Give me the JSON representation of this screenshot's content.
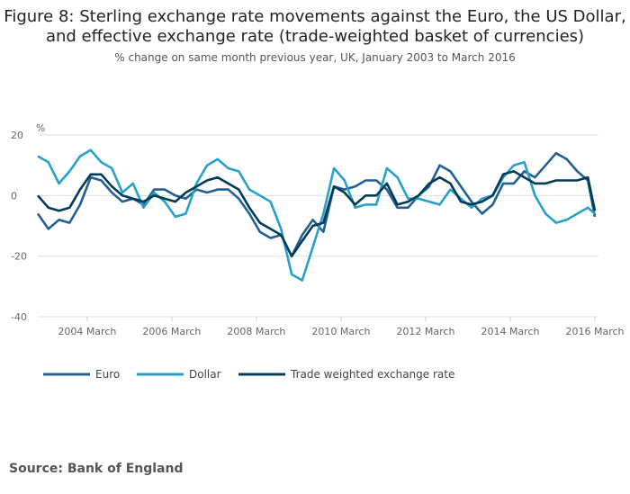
{
  "title_line1": "Figure 8: Sterling exchange rate movements against the Euro, the US Dollar,",
  "title_line2": "and effective exchange rate (trade-weighted basket of currencies)",
  "subtitle": "% change on same month previous year, UK, January 2003 to March 2016",
  "source": "Source: Bank of England",
  "chart_data": {
    "type": "line",
    "ylabel": "%",
    "ylim": [
      -40,
      20
    ],
    "yticks": [
      20,
      0,
      -20,
      -40
    ],
    "xlim": [
      "2003-01",
      "2016-03"
    ],
    "xticks": [
      {
        "date": "2004-03",
        "label": "2004 March"
      },
      {
        "date": "2006-03",
        "label": "2006 March"
      },
      {
        "date": "2008-03",
        "label": "2008 March"
      },
      {
        "date": "2010-03",
        "label": "2010 March"
      },
      {
        "date": "2012-03",
        "label": "2012 March"
      },
      {
        "date": "2014-03",
        "label": "2014 March"
      },
      {
        "date": "2016-03",
        "label": "2016 March"
      }
    ],
    "grid": true,
    "legend": "bottom",
    "x": [
      "2003-01",
      "2003-04",
      "2003-07",
      "2003-10",
      "2004-01",
      "2004-04",
      "2004-07",
      "2004-10",
      "2005-01",
      "2005-04",
      "2005-07",
      "2005-10",
      "2006-01",
      "2006-04",
      "2006-07",
      "2006-10",
      "2007-01",
      "2007-04",
      "2007-07",
      "2007-10",
      "2008-01",
      "2008-04",
      "2008-07",
      "2008-10",
      "2009-01",
      "2009-04",
      "2009-07",
      "2009-10",
      "2010-01",
      "2010-04",
      "2010-07",
      "2010-10",
      "2011-01",
      "2011-04",
      "2011-07",
      "2011-10",
      "2012-01",
      "2012-04",
      "2012-07",
      "2012-10",
      "2013-01",
      "2013-04",
      "2013-07",
      "2013-10",
      "2014-01",
      "2014-04",
      "2014-07",
      "2014-10",
      "2015-01",
      "2015-04",
      "2015-07",
      "2015-10",
      "2016-01",
      "2016-03"
    ],
    "series": [
      {
        "name": "Euro",
        "color": "#206095",
        "values": [
          -6,
          -11,
          -8,
          -9,
          -3,
          6,
          5,
          1,
          -2,
          -1,
          -3,
          2,
          2,
          0,
          -1,
          2,
          1,
          2,
          2,
          -1,
          -6,
          -12,
          -14,
          -13,
          -20,
          -13,
          -8,
          -12,
          3,
          2,
          3,
          5,
          5,
          2,
          -4,
          -4,
          0,
          3,
          10,
          8,
          3,
          -2,
          -6,
          -3,
          4,
          4,
          8,
          6,
          10,
          14,
          12,
          8,
          5,
          -7
        ]
      },
      {
        "name": "Dollar",
        "color": "#27a0cc",
        "values": [
          13,
          11,
          4,
          8,
          13,
          15,
          11,
          9,
          1,
          4,
          -4,
          1,
          -2,
          -7,
          -6,
          4,
          10,
          12,
          9,
          8,
          2,
          0,
          -2,
          -11,
          -26,
          -28,
          -17,
          -6,
          9,
          5,
          -4,
          -3,
          -3,
          9,
          6,
          -1,
          -1,
          -2,
          -3,
          2,
          -1,
          -4,
          -1,
          0,
          6,
          10,
          11,
          0,
          -6,
          -9,
          -8,
          -6,
          -4,
          -6
        ]
      },
      {
        "name": "Trade weighted exchange rate",
        "color": "#003c57",
        "values": [
          0,
          -4,
          -5,
          -4,
          2,
          7,
          7,
          3,
          0,
          -1,
          -2,
          0,
          -1,
          -2,
          1,
          3,
          5,
          6,
          4,
          2,
          -4,
          -9,
          -11,
          -13,
          -20,
          -15,
          -10,
          -9,
          3,
          1,
          -3,
          0,
          0,
          4,
          -3,
          -2,
          0,
          4,
          6,
          4,
          -2,
          -3,
          -2,
          0,
          7,
          8,
          6,
          4,
          4,
          5,
          5,
          5,
          6,
          -5
        ]
      }
    ]
  }
}
